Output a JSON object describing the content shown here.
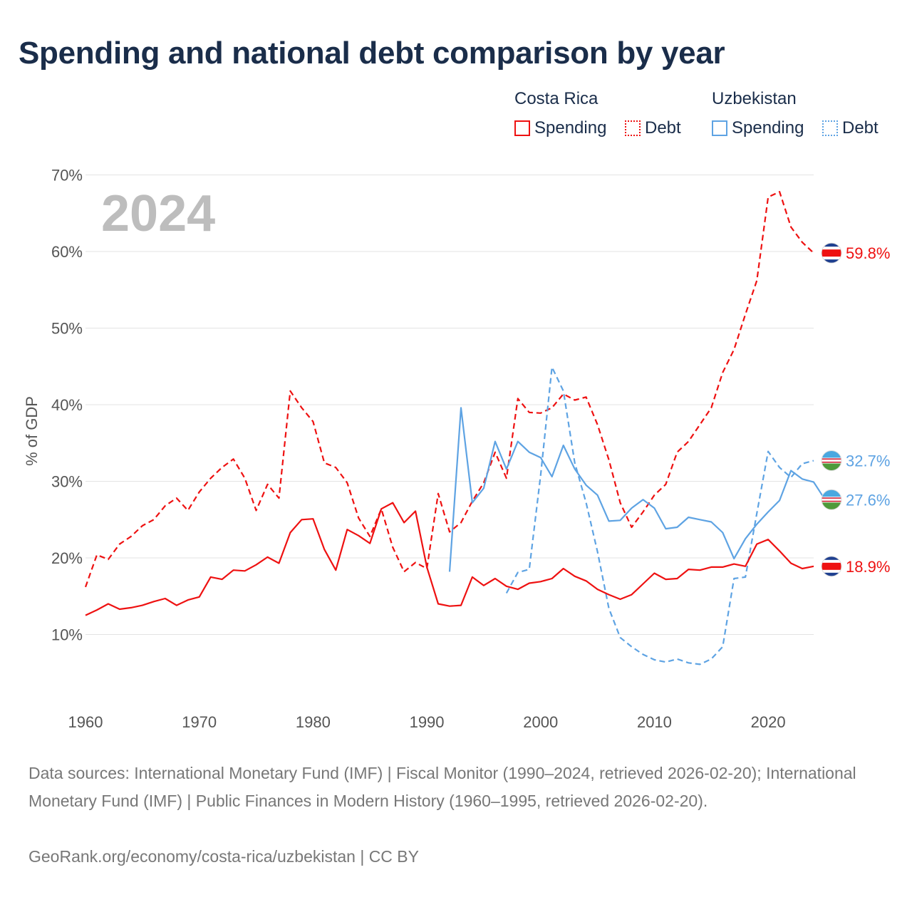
{
  "title": "Spending and national debt comparison by year",
  "legend": {
    "groups": [
      {
        "country": "Costa Rica",
        "items": [
          {
            "label": "Spending"
          },
          {
            "label": "Debt"
          }
        ]
      },
      {
        "country": "Uzbekistan",
        "items": [
          {
            "label": "Spending"
          },
          {
            "label": "Debt"
          }
        ]
      }
    ]
  },
  "colors": {
    "costa_rica": "#ee1111",
    "uzbekistan": "#5ea3e3"
  },
  "icons": {
    "costa_rica": "costa-rica-flag-icon",
    "uzbekistan": "uzbekistan-flag-icon"
  },
  "chart_data": {
    "type": "line",
    "title": "Spending and national debt comparison by year",
    "ylabel": "% of GDP",
    "xlabel": "",
    "year_label": "2024",
    "xlim": [
      1960,
      2024
    ],
    "ylim": [
      0,
      70
    ],
    "x_ticks": [
      1960,
      1970,
      1980,
      1990,
      2000,
      2010,
      2020
    ],
    "y_ticks": [
      10,
      20,
      30,
      40,
      50,
      60,
      70
    ],
    "y_tick_labels": [
      "10%",
      "20%",
      "30%",
      "40%",
      "50%",
      "60%",
      "70%"
    ],
    "grid": true,
    "series": [
      {
        "name": "Costa Rica Debt",
        "country": "Costa Rica",
        "metric": "Debt",
        "style": "dashed",
        "start_year": 1960,
        "values": [
          16.2,
          20.4,
          19.8,
          21.8,
          22.8,
          24.2,
          25.0,
          26.8,
          27.8,
          26.2,
          28.6,
          30.4,
          31.8,
          32.9,
          30.4,
          26.2,
          29.6,
          27.8,
          41.8,
          39.6,
          37.8,
          32.4,
          31.8,
          29.8,
          25.2,
          22.8,
          26.4,
          21.4,
          18.2,
          19.4,
          18.6,
          28.4,
          23.4,
          24.6,
          27.4,
          29.8,
          33.8,
          30.4,
          40.8,
          39.0,
          38.9,
          39.6,
          41.4,
          40.6,
          41.0,
          37.4,
          32.8,
          27.2,
          24.0,
          26.0,
          28.2,
          29.6,
          33.8,
          35.2,
          37.4,
          39.6,
          44.2,
          47.2,
          51.8,
          56.2,
          67.1,
          67.8,
          63.2,
          61.2,
          59.8
        ],
        "end_label": "59.8%"
      },
      {
        "name": "Costa Rica Spending",
        "country": "Costa Rica",
        "metric": "Spending",
        "style": "solid",
        "start_year": 1960,
        "values": [
          12.5,
          13.2,
          14.0,
          13.3,
          13.5,
          13.8,
          14.3,
          14.7,
          13.8,
          14.5,
          14.9,
          17.5,
          17.2,
          18.4,
          18.3,
          19.1,
          20.1,
          19.3,
          23.3,
          25.0,
          25.1,
          21.1,
          18.4,
          23.7,
          22.9,
          21.9,
          26.4,
          27.2,
          24.6,
          26.1,
          18.8,
          14.0,
          13.7,
          13.8,
          17.5,
          16.4,
          17.3,
          16.3,
          15.9,
          16.7,
          16.9,
          17.3,
          18.6,
          17.6,
          17.0,
          15.9,
          15.2,
          14.6,
          15.2,
          16.6,
          18.0,
          17.2,
          17.3,
          18.5,
          18.4,
          18.8,
          18.8,
          19.2,
          18.9,
          21.8,
          22.4,
          20.9,
          19.3,
          18.6,
          18.9
        ],
        "end_label": "18.9%"
      },
      {
        "name": "Uzbekistan Debt",
        "country": "Uzbekistan",
        "metric": "Debt",
        "style": "dashed",
        "start_year": 1997,
        "values": [
          15.4,
          18.1,
          18.5,
          30.8,
          44.9,
          41.8,
          32.4,
          27.2,
          20.8,
          13.4,
          9.6,
          8.4,
          7.4,
          6.7,
          6.4,
          6.8,
          6.3,
          6.1,
          6.8,
          8.4,
          17.3,
          17.5,
          25.8,
          33.9,
          31.8,
          30.5,
          32.3,
          32.7
        ],
        "end_label": "32.7%"
      },
      {
        "name": "Uzbekistan Spending",
        "country": "Uzbekistan",
        "metric": "Spending",
        "style": "solid",
        "start_year": 1992,
        "values": [
          18.2,
          39.6,
          27.2,
          29.1,
          35.2,
          31.6,
          35.2,
          33.8,
          33.1,
          30.6,
          34.7,
          31.6,
          29.5,
          28.2,
          24.8,
          24.9,
          26.5,
          27.6,
          26.5,
          23.8,
          24.0,
          25.3,
          25.0,
          24.7,
          23.3,
          19.9,
          22.5,
          24.4,
          26.0,
          27.5,
          31.4,
          30.3,
          29.9,
          27.6
        ],
        "end_label": "27.6%"
      }
    ]
  },
  "footer": {
    "sources": "Data sources: International Monetary Fund (IMF) | Fiscal Monitor (1990–2024, retrieved 2026-02-20); International Monetary Fund (IMF) | Public Finances in Modern History (1960–1995, retrieved 2026-02-20).",
    "credit": "GeoRank.org/economy/costa-rica/uzbekistan | CC BY"
  }
}
